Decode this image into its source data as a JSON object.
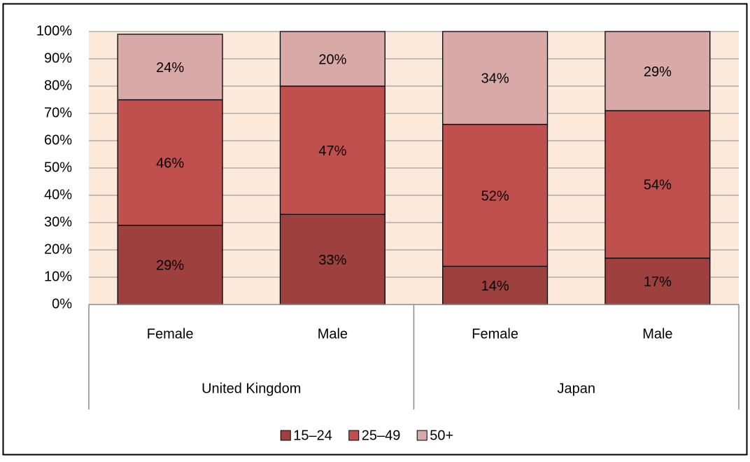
{
  "chart_data": {
    "type": "stacked_bar",
    "groups": [
      {
        "name": "United Kingdom",
        "categories": [
          "Female",
          "Male"
        ]
      },
      {
        "name": "Japan",
        "categories": [
          "Female",
          "Male"
        ]
      }
    ],
    "series": [
      {
        "name": "15–24",
        "color": "#9e413e",
        "values": [
          29,
          33,
          14,
          17
        ],
        "value_labels": [
          "29%",
          "33%",
          "14%",
          "17%"
        ]
      },
      {
        "name": "25–49",
        "color": "#c0504d",
        "values": [
          46,
          47,
          52,
          54
        ],
        "value_labels": [
          "46%",
          "47%",
          "52%",
          "54%"
        ]
      },
      {
        "name": "50+",
        "color": "#d9a9a8",
        "values": [
          24,
          20,
          34,
          29
        ],
        "value_labels": [
          "24%",
          "20%",
          "34%",
          "29%"
        ]
      }
    ],
    "ylim": [
      0,
      100
    ],
    "yticks": [
      {
        "value": 0,
        "label": "0%"
      },
      {
        "value": 10,
        "label": "10%"
      },
      {
        "value": 20,
        "label": "20%"
      },
      {
        "value": 30,
        "label": "30%"
      },
      {
        "value": 40,
        "label": "40%"
      },
      {
        "value": 50,
        "label": "50%"
      },
      {
        "value": 60,
        "label": "60%"
      },
      {
        "value": 70,
        "label": "70%"
      },
      {
        "value": 80,
        "label": "80%"
      },
      {
        "value": 90,
        "label": "90%"
      },
      {
        "value": 100,
        "label": "100%"
      }
    ],
    "grid": true,
    "legend": "bottom"
  }
}
